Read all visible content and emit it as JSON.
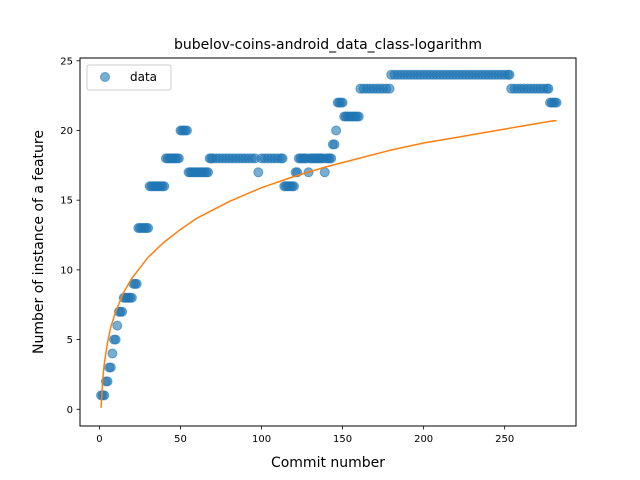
{
  "chart_data": {
    "type": "scatter",
    "title": "bubelov-coins-android_data_class-logarithm",
    "xlabel": "Commit number",
    "ylabel": "Number of instance of a feature",
    "xlim": [
      -12,
      294
    ],
    "ylim": [
      -1.2,
      25.2
    ],
    "xticks": [
      0,
      50,
      100,
      150,
      200,
      250
    ],
    "yticks": [
      0,
      5,
      10,
      15,
      20,
      25
    ],
    "grid": false,
    "legend": {
      "position": "top-left",
      "entries": [
        "data"
      ]
    },
    "colors": {
      "data": "#1f77b4",
      "fit": "#ff7f0e"
    },
    "series": [
      {
        "name": "data",
        "kind": "scatter",
        "points": [
          [
            1,
            1
          ],
          [
            2,
            1
          ],
          [
            3,
            1
          ],
          [
            4,
            2
          ],
          [
            5,
            2
          ],
          [
            6,
            3
          ],
          [
            7,
            3
          ],
          [
            8,
            4
          ],
          [
            9,
            5
          ],
          [
            10,
            5
          ],
          [
            11,
            6
          ],
          [
            12,
            7
          ],
          [
            13,
            7
          ],
          [
            14,
            7
          ],
          [
            15,
            8
          ],
          [
            16,
            8
          ],
          [
            17,
            8
          ],
          [
            18,
            8
          ],
          [
            19,
            8
          ],
          [
            20,
            8
          ],
          [
            21,
            9
          ],
          [
            22,
            9
          ],
          [
            23,
            9
          ],
          [
            24,
            13
          ],
          [
            25,
            13
          ],
          [
            26,
            13
          ],
          [
            27,
            13
          ],
          [
            28,
            13
          ],
          [
            29,
            13
          ],
          [
            30,
            13
          ],
          [
            31,
            16
          ],
          [
            32,
            16
          ],
          [
            33,
            16
          ],
          [
            34,
            16
          ],
          [
            35,
            16
          ],
          [
            36,
            16
          ],
          [
            37,
            16
          ],
          [
            38,
            16
          ],
          [
            39,
            16
          ],
          [
            40,
            16
          ],
          [
            41,
            18
          ],
          [
            42,
            18
          ],
          [
            43,
            18
          ],
          [
            44,
            18
          ],
          [
            45,
            18
          ],
          [
            46,
            18
          ],
          [
            47,
            18
          ],
          [
            48,
            18
          ],
          [
            49,
            18
          ],
          [
            50,
            20
          ],
          [
            51,
            20
          ],
          [
            52,
            20
          ],
          [
            53,
            20
          ],
          [
            54,
            20
          ],
          [
            55,
            17
          ],
          [
            56,
            17
          ],
          [
            57,
            17
          ],
          [
            58,
            17
          ],
          [
            59,
            17
          ],
          [
            60,
            17
          ],
          [
            61,
            17
          ],
          [
            62,
            17
          ],
          [
            63,
            17
          ],
          [
            64,
            17
          ],
          [
            65,
            17
          ],
          [
            66,
            17
          ],
          [
            67,
            17
          ],
          [
            68,
            18
          ],
          [
            69,
            18
          ],
          [
            70,
            18
          ],
          [
            72,
            18
          ],
          [
            74,
            18
          ],
          [
            76,
            18
          ],
          [
            78,
            18
          ],
          [
            80,
            18
          ],
          [
            82,
            18
          ],
          [
            84,
            18
          ],
          [
            86,
            18
          ],
          [
            88,
            18
          ],
          [
            90,
            18
          ],
          [
            92,
            18
          ],
          [
            94,
            18
          ],
          [
            96,
            18
          ],
          [
            98,
            17
          ],
          [
            100,
            18
          ],
          [
            102,
            18
          ],
          [
            104,
            18
          ],
          [
            106,
            18
          ],
          [
            108,
            18
          ],
          [
            110,
            18
          ],
          [
            112,
            18
          ],
          [
            113,
            18
          ],
          [
            114,
            16
          ],
          [
            115,
            16
          ],
          [
            116,
            16
          ],
          [
            117,
            16
          ],
          [
            118,
            16
          ],
          [
            119,
            16
          ],
          [
            120,
            16
          ],
          [
            121,
            17
          ],
          [
            122,
            17
          ],
          [
            123,
            18
          ],
          [
            124,
            18
          ],
          [
            125,
            18
          ],
          [
            126,
            18
          ],
          [
            127,
            18
          ],
          [
            128,
            18
          ],
          [
            129,
            17
          ],
          [
            130,
            18
          ],
          [
            131,
            18
          ],
          [
            132,
            18
          ],
          [
            133,
            18
          ],
          [
            134,
            18
          ],
          [
            135,
            18
          ],
          [
            136,
            18
          ],
          [
            137,
            18
          ],
          [
            138,
            18
          ],
          [
            139,
            17
          ],
          [
            140,
            18
          ],
          [
            141,
            18
          ],
          [
            142,
            18
          ],
          [
            143,
            18
          ],
          [
            144,
            19
          ],
          [
            145,
            19
          ],
          [
            146,
            20
          ],
          [
            147,
            22
          ],
          [
            148,
            22
          ],
          [
            149,
            22
          ],
          [
            150,
            22
          ],
          [
            151,
            21
          ],
          [
            152,
            21
          ],
          [
            153,
            21
          ],
          [
            154,
            21
          ],
          [
            155,
            21
          ],
          [
            156,
            21
          ],
          [
            157,
            21
          ],
          [
            158,
            21
          ],
          [
            159,
            21
          ],
          [
            160,
            21
          ],
          [
            161,
            23
          ],
          [
            163,
            23
          ],
          [
            165,
            23
          ],
          [
            167,
            23
          ],
          [
            169,
            23
          ],
          [
            171,
            23
          ],
          [
            173,
            23
          ],
          [
            175,
            23
          ],
          [
            177,
            23
          ],
          [
            179,
            23
          ],
          [
            180,
            24
          ],
          [
            182,
            24
          ],
          [
            184,
            24
          ],
          [
            186,
            24
          ],
          [
            188,
            24
          ],
          [
            190,
            24
          ],
          [
            192,
            24
          ],
          [
            194,
            24
          ],
          [
            196,
            24
          ],
          [
            198,
            24
          ],
          [
            200,
            24
          ],
          [
            202,
            24
          ],
          [
            204,
            24
          ],
          [
            206,
            24
          ],
          [
            208,
            24
          ],
          [
            210,
            24
          ],
          [
            212,
            24
          ],
          [
            214,
            24
          ],
          [
            216,
            24
          ],
          [
            218,
            24
          ],
          [
            220,
            24
          ],
          [
            222,
            24
          ],
          [
            224,
            24
          ],
          [
            226,
            24
          ],
          [
            228,
            24
          ],
          [
            230,
            24
          ],
          [
            232,
            24
          ],
          [
            234,
            24
          ],
          [
            236,
            24
          ],
          [
            238,
            24
          ],
          [
            240,
            24
          ],
          [
            242,
            24
          ],
          [
            244,
            24
          ],
          [
            246,
            24
          ],
          [
            248,
            24
          ],
          [
            250,
            24
          ],
          [
            252,
            24
          ],
          [
            253,
            24
          ],
          [
            254,
            23
          ],
          [
            256,
            23
          ],
          [
            258,
            23
          ],
          [
            260,
            23
          ],
          [
            262,
            23
          ],
          [
            264,
            23
          ],
          [
            266,
            23
          ],
          [
            268,
            23
          ],
          [
            270,
            23
          ],
          [
            272,
            23
          ],
          [
            274,
            23
          ],
          [
            276,
            23
          ],
          [
            277,
            23
          ],
          [
            278,
            22
          ],
          [
            279,
            22
          ],
          [
            280,
            22
          ],
          [
            281,
            22
          ],
          [
            282,
            22
          ]
        ]
      },
      {
        "kind": "line",
        "points": [
          [
            1,
            0.1
          ],
          [
            2,
            2.1
          ],
          [
            3,
            3.3
          ],
          [
            5,
            4.8
          ],
          [
            7,
            5.9
          ],
          [
            10,
            7.0
          ],
          [
            15,
            8.4
          ],
          [
            20,
            9.4
          ],
          [
            30,
            10.9
          ],
          [
            40,
            12.0
          ],
          [
            50,
            12.9
          ],
          [
            60,
            13.7
          ],
          [
            70,
            14.3
          ],
          [
            80,
            14.9
          ],
          [
            90,
            15.4
          ],
          [
            100,
            15.9
          ],
          [
            120,
            16.7
          ],
          [
            140,
            17.4
          ],
          [
            160,
            18.0
          ],
          [
            180,
            18.6
          ],
          [
            200,
            19.1
          ],
          [
            220,
            19.5
          ],
          [
            240,
            19.9
          ],
          [
            260,
            20.3
          ],
          [
            280,
            20.7
          ],
          [
            282,
            20.7
          ]
        ]
      }
    ]
  }
}
